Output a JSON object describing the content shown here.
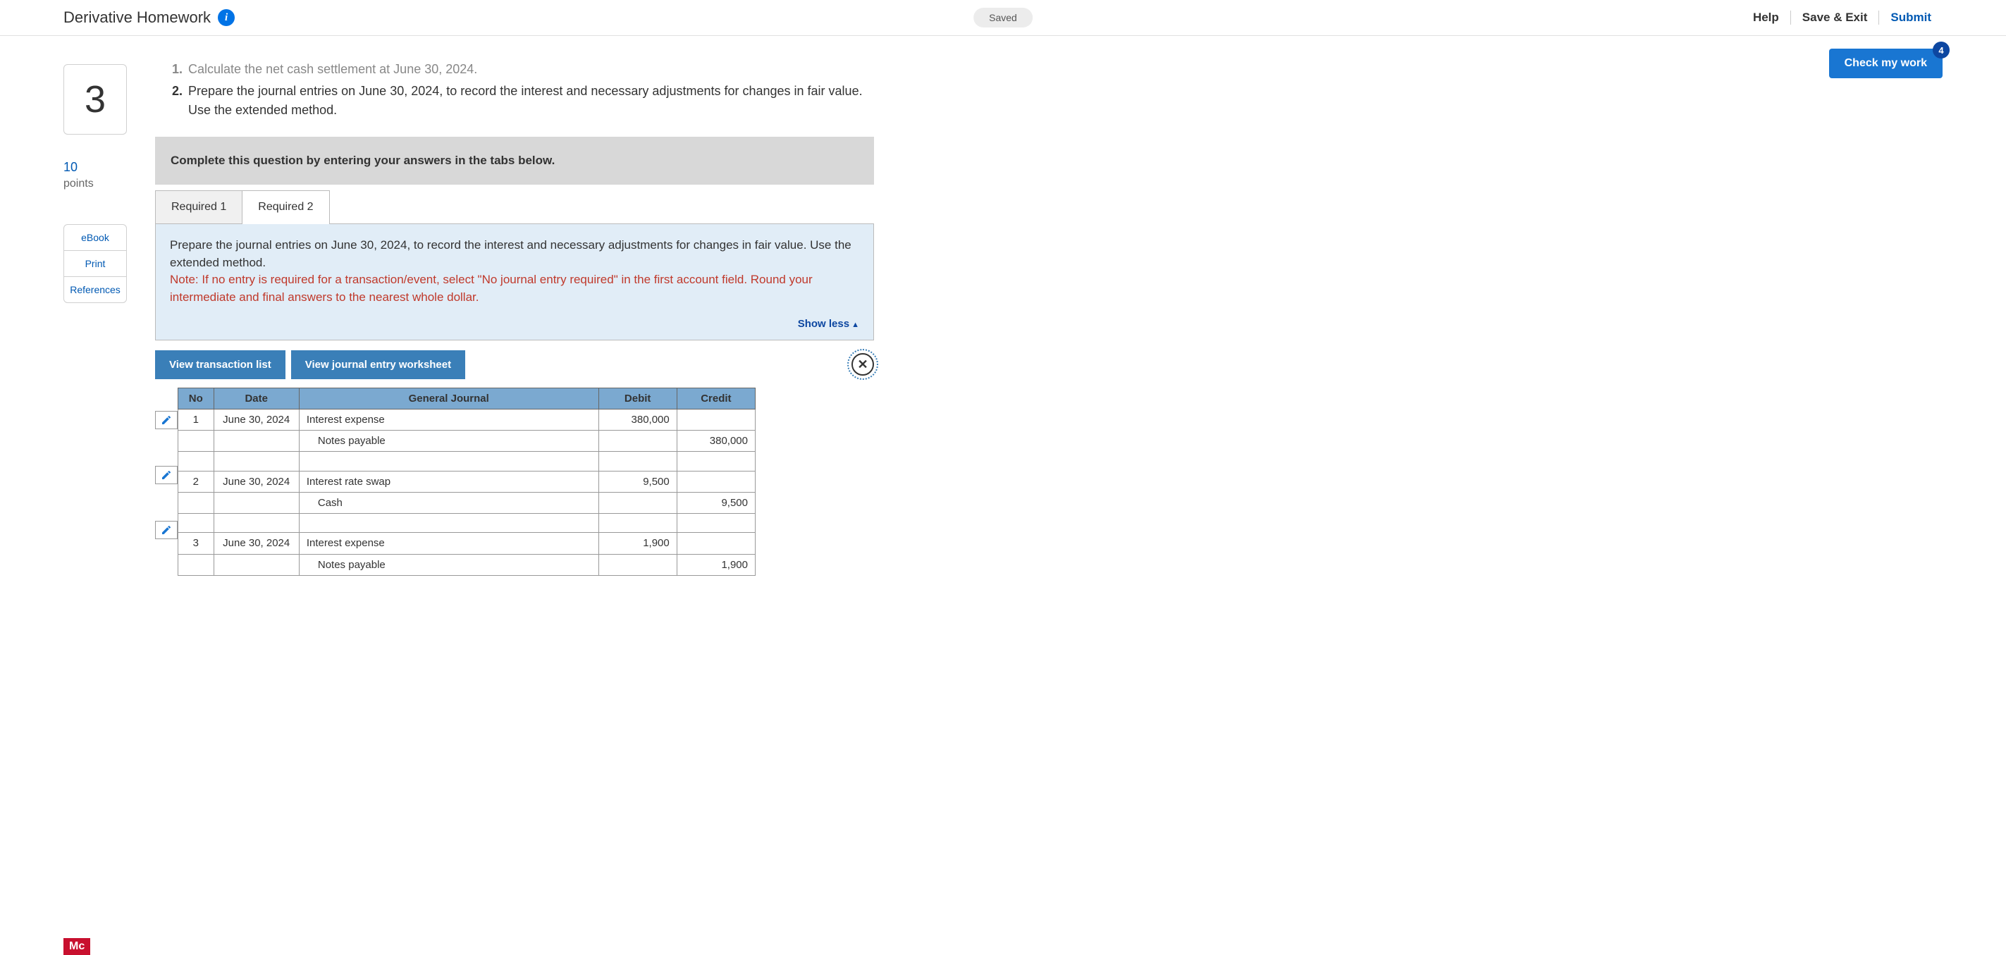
{
  "header": {
    "title": "Derivative Homework",
    "saved_label": "Saved",
    "help": "Help",
    "save_exit": "Save & Exit",
    "submit": "Submit"
  },
  "check": {
    "label": "Check my work",
    "badge": "4"
  },
  "question": {
    "number": "3",
    "points_value": "10",
    "points_label": "points"
  },
  "side_links": {
    "ebook": "eBook",
    "print": "Print",
    "refs": "References"
  },
  "instructions": {
    "n1": "1.",
    "t1": "Calculate the net cash settlement at June 30, 2024.",
    "n2": "2.",
    "t2": "Prepare the journal entries on June 30, 2024, to record the interest and necessary adjustments for changes in fair value. Use the extended method."
  },
  "banner": "Complete this question by entering your answers in the tabs below.",
  "tabs": {
    "r1": "Required 1",
    "r2": "Required 2"
  },
  "tab_content": {
    "main": "Prepare the journal entries on June 30, 2024, to record the interest and necessary adjustments for changes in fair value. Use the extended method.",
    "note": "Note: If no entry is required for a transaction/event, select \"No journal entry required\" in the first account field. Round your intermediate and final answers to the nearest whole dollar.",
    "show_less": "Show less"
  },
  "actions": {
    "vtl": "View transaction list",
    "vjew": "View journal entry worksheet"
  },
  "journal": {
    "headers": {
      "no": "No",
      "date": "Date",
      "gj": "General Journal",
      "debit": "Debit",
      "credit": "Credit"
    },
    "rows": [
      {
        "no": "1",
        "date": "June 30, 2024",
        "account": "Interest expense",
        "debit": "380,000",
        "credit": "",
        "indent": false
      },
      {
        "no": "",
        "date": "",
        "account": "Notes payable",
        "debit": "",
        "credit": "380,000",
        "indent": true
      },
      {
        "no": "",
        "date": "",
        "account": "",
        "debit": "",
        "credit": "",
        "indent": false
      },
      {
        "no": "2",
        "date": "June 30, 2024",
        "account": "Interest rate swap",
        "debit": "9,500",
        "credit": "",
        "indent": false
      },
      {
        "no": "",
        "date": "",
        "account": "Cash",
        "debit": "",
        "credit": "9,500",
        "indent": true
      },
      {
        "no": "",
        "date": "",
        "account": "",
        "debit": "",
        "credit": "",
        "indent": false
      },
      {
        "no": "3",
        "date": "June 30, 2024",
        "account": "Interest expense",
        "debit": "1,900",
        "credit": "",
        "indent": false
      },
      {
        "no": "",
        "date": "",
        "account": "Notes payable",
        "debit": "",
        "credit": "1,900",
        "indent": true
      }
    ],
    "edit_rows": [
      0,
      3,
      6
    ]
  },
  "footer": {
    "logo": "Mc"
  }
}
